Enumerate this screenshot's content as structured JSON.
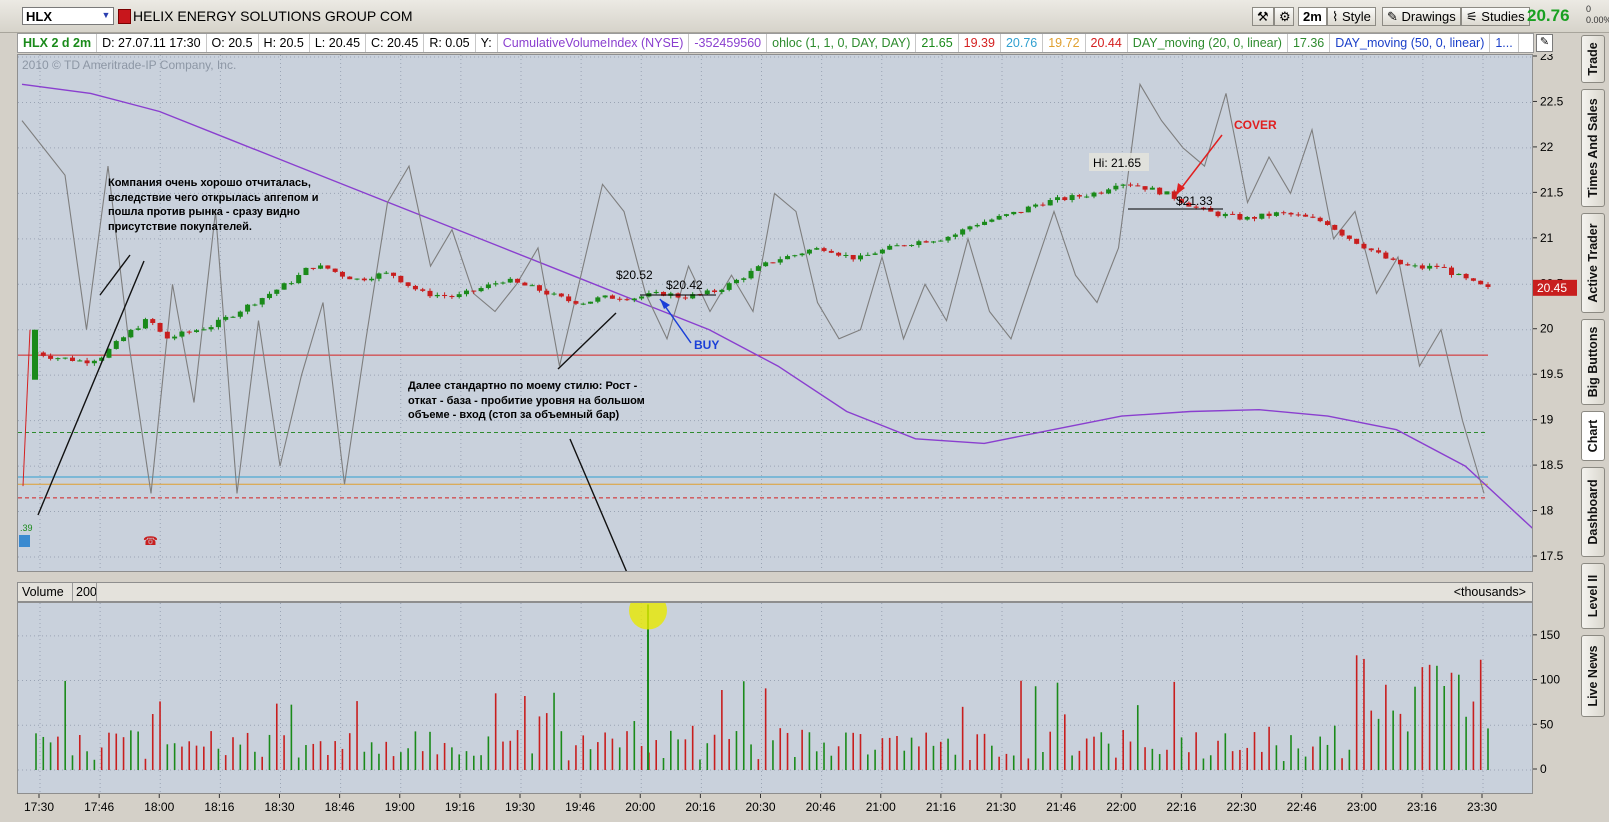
{
  "toolbar": {
    "symbol": "HLX",
    "company": "HELIX ENERGY SOLUTIONS GROUP COM",
    "timeframe_btn": "2m",
    "style_btn": "Style",
    "drawings_btn": "Drawings",
    "studies_btn": "Studies",
    "last_price": "20.76",
    "change": "0\n0.00%"
  },
  "infobar": {
    "chart_name": "HLX 2 d 2m",
    "date": "D: 27.07.11 17:30",
    "open": "O: 20.5",
    "high": "H: 20.5",
    "low": "L: 20.45",
    "close": "C: 20.45",
    "range": "R: 0.05",
    "y": "Y:",
    "cvi": "CumulativeVolumeIndex (NYSE)",
    "cvi_val": "-352459560",
    "ohloc": "ohloc (1, 1, 0, DAY, DAY)",
    "ohloc_h": "21.65",
    "ohloc_l": "19.39",
    "ohloc_c": "20.76",
    "ohloc_o": "19.72",
    "ohloc_x": "20.44",
    "ma20": "DAY_moving (20, 0, linear)",
    "ma20_val": "17.36",
    "ma50": "DAY_moving (50, 0, linear)",
    "ma50_val": "1..."
  },
  "copyright": "2010 © TD Ameritrade-IP Company, Inc.",
  "annotations": {
    "note1": "Компания очень хорошо отчиталась, вследствие чего открылась апгепом и пошла против рынка - сразу видно присутствие покупателей.",
    "note2": "Далее стандартно по моему стилю: Рост - откат - база - пробитие уровня на большом объеме - вход (стоп за объемный бар)",
    "buy": "BUY",
    "cover": "COVER",
    "hi": "Hi: 21.65",
    "p2052": "$20.52",
    "p2042": "$20.42",
    "p2133": "$21.33",
    "left_small": ".39",
    "current_price_tag": "20.45"
  },
  "volume_header": {
    "label": "Volume",
    "period": "200",
    "units": "<thousands>"
  },
  "side_tabs": [
    "Trade",
    "Times And Sales",
    "Active Trader",
    "Big Buttons",
    "Chart",
    "Dashboard",
    "Level II",
    "Live News"
  ],
  "colors": {
    "up": "#1a8a1a",
    "down": "#c81e1e",
    "cvi": "#7e7e7e",
    "ma": "#8a3fcf",
    "bg": "#c9d1dc"
  },
  "chart_data": {
    "type": "candlestick",
    "price_axis": {
      "min": 17.5,
      "max": 23,
      "ticks": [
        17.5,
        18,
        18.5,
        19,
        19.5,
        20,
        20.5,
        21,
        21.5,
        22,
        22.5,
        23
      ]
    },
    "volume_axis": {
      "min": 0,
      "max": 200,
      "ticks": [
        0,
        50,
        100,
        150
      ],
      "units": "thousands"
    },
    "x_ticks": [
      "17:30",
      "17:46",
      "18:00",
      "18:16",
      "18:30",
      "18:46",
      "19:00",
      "19:16",
      "19:30",
      "19:46",
      "20:00",
      "20:16",
      "20:30",
      "20:46",
      "21:00",
      "21:16",
      "21:30",
      "21:46",
      "22:00",
      "22:16",
      "22:30",
      "22:46",
      "23:00",
      "23:16",
      "23:30"
    ],
    "levels": [
      {
        "price": 19.72,
        "color": "#d42020",
        "style": "solid"
      },
      {
        "price": 18.87,
        "color": "#2e8b2e",
        "style": "dashed"
      },
      {
        "price": 18.38,
        "color": "#30a0d0",
        "style": "solid"
      },
      {
        "price": 18.3,
        "color": "#e0a030",
        "style": "solid"
      },
      {
        "price": 18.15,
        "color": "#d42020",
        "style": "dashed"
      }
    ],
    "close_path": [
      19.75,
      19.7,
      19.68,
      19.65,
      19.7,
      19.85,
      20.0,
      20.12,
      19.9,
      19.95,
      20.0,
      20.05,
      20.15,
      20.25,
      20.35,
      20.45,
      20.55,
      20.7,
      20.68,
      20.6,
      20.55,
      20.6,
      20.62,
      20.5,
      20.4,
      20.38,
      20.36,
      20.42,
      20.48,
      20.55,
      20.5,
      20.45,
      20.38,
      20.32,
      20.3,
      20.35,
      20.36,
      20.35,
      20.38,
      20.4,
      20.36,
      20.38,
      20.42,
      20.5,
      20.6,
      20.7,
      20.78,
      20.82,
      20.88,
      20.9,
      20.82,
      20.78,
      20.85,
      20.9,
      20.95,
      20.98,
      21.0,
      21.05,
      21.15,
      21.2,
      21.25,
      21.3,
      21.38,
      21.42,
      21.45,
      21.48,
      21.52,
      21.62,
      21.6,
      21.55,
      21.5,
      21.42,
      21.33,
      21.28,
      21.25,
      21.22,
      21.25,
      21.28,
      21.26,
      21.22,
      21.18,
      21.05,
      20.95,
      20.85,
      20.75,
      20.7,
      20.68,
      20.7,
      20.6,
      20.52,
      20.45
    ],
    "cvi_path": [
      22.3,
      22.0,
      21.7,
      20.0,
      21.8,
      19.8,
      18.2,
      20.5,
      19.2,
      21.3,
      18.2,
      20.1,
      18.5,
      19.5,
      20.3,
      18.3,
      19.9,
      21.4,
      21.8,
      20.7,
      21.1,
      20.4,
      20.2,
      20.5,
      20.9,
      19.6,
      20.6,
      21.6,
      21.3,
      20.4,
      19.9,
      20.7,
      20.2,
      20.6,
      20.2,
      21.5,
      21.3,
      20.3,
      19.9,
      20.0,
      20.8,
      19.9,
      20.5,
      20.1,
      21.0,
      20.2,
      19.9,
      20.6,
      21.3,
      20.6,
      20.3,
      20.9,
      22.7,
      22.3,
      22.0,
      21.8,
      22.6,
      21.4,
      21.9,
      21.5,
      22.2,
      21.0,
      21.3,
      20.4,
      20.8,
      19.6,
      20.0,
      19.0,
      18.2
    ],
    "ma50_path": [
      22.7,
      22.6,
      22.4,
      22.1,
      21.8,
      21.5,
      21.2,
      20.9,
      20.6,
      20.3,
      20.0,
      19.6,
      19.1,
      18.8,
      18.75,
      18.9,
      19.05,
      19.1,
      19.12,
      19.05,
      18.9,
      18.5,
      17.8
    ],
    "volume_highlight": {
      "time": "20:10",
      "volume": 185
    }
  }
}
